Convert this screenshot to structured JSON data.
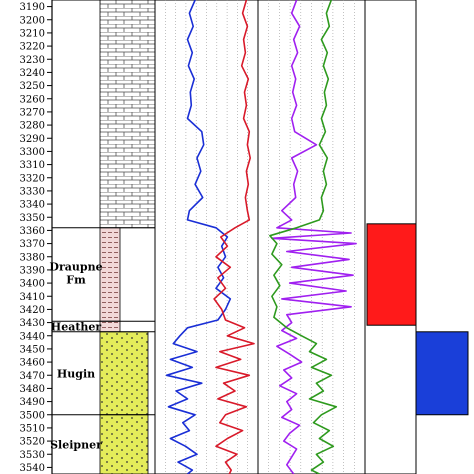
{
  "chart_data": {
    "type": "line",
    "title": "",
    "depth_axis": {
      "range": [
        3185,
        3545
      ],
      "ticks": [
        3190,
        3200,
        3210,
        3220,
        3230,
        3240,
        3250,
        3260,
        3270,
        3280,
        3290,
        3300,
        3310,
        3320,
        3330,
        3340,
        3350,
        3360,
        3370,
        3380,
        3390,
        3400,
        3410,
        3420,
        3430,
        3440,
        3450,
        3460,
        3470,
        3480,
        3490,
        3500,
        3510,
        3520,
        3530,
        3540
      ]
    },
    "formations": [
      {
        "label": "",
        "top": 3185,
        "base": 3358,
        "lithology": "limestone"
      },
      {
        "label": "Draupne Fm",
        "top": 3358,
        "base": 3429,
        "lithology": "shale"
      },
      {
        "label": "Heather",
        "top": 3429,
        "base": 3437,
        "lithology": "shale"
      },
      {
        "label": "Hugin",
        "top": 3437,
        "base": 3500,
        "lithology": "sandstone"
      },
      {
        "label": "Sleipner",
        "top": 3500,
        "base": 3545,
        "lithology": "sandstone"
      }
    ],
    "tracks": [
      {
        "series": [
          {
            "color": "#1a2fd6",
            "x_range": [
              0,
              100
            ],
            "depths": [
              3185,
              3195,
              3205,
              3215,
              3225,
              3235,
              3245,
              3255,
              3265,
              3275,
              3285,
              3295,
              3305,
              3315,
              3325,
              3335,
              3345,
              3352,
              3358,
              3365,
              3372,
              3380,
              3388,
              3396,
              3404,
              3412,
              3420,
              3428,
              3434,
              3440,
              3446,
              3452,
              3458,
              3464,
              3470,
              3476,
              3482,
              3488,
              3494,
              3500,
              3506,
              3512,
              3518,
              3524,
              3530,
              3536,
              3542,
              3545
            ],
            "values": [
              38,
              32,
              36,
              30,
              35,
              31,
              37,
              33,
              34,
              30,
              45,
              47,
              40,
              44,
              38,
              46,
              32,
              30,
              60,
              72,
              66,
              70,
              62,
              68,
              60,
              75,
              70,
              62,
              30,
              22,
              15,
              40,
              12,
              35,
              8,
              45,
              18,
              30,
              10,
              38,
              25,
              32,
              12,
              28,
              40,
              20,
              35,
              30
            ]
          },
          {
            "color": "#d91a2a",
            "x_range": [
              0,
              100
            ],
            "depths": [
              3185,
              3195,
              3205,
              3215,
              3225,
              3235,
              3245,
              3255,
              3265,
              3275,
              3285,
              3295,
              3305,
              3315,
              3325,
              3335,
              3345,
              3352,
              3358,
              3365,
              3372,
              3380,
              3388,
              3396,
              3404,
              3412,
              3420,
              3428,
              3434,
              3440,
              3446,
              3452,
              3458,
              3464,
              3470,
              3476,
              3482,
              3488,
              3494,
              3500,
              3506,
              3512,
              3518,
              3524,
              3530,
              3536,
              3542,
              3545
            ],
            "values": [
              92,
              88,
              93,
              89,
              91,
              87,
              94,
              90,
              92,
              89,
              95,
              93,
              96,
              92,
              94,
              91,
              93,
              95,
              80,
              65,
              72,
              60,
              75,
              62,
              70,
              58,
              66,
              70,
              90,
              72,
              100,
              64,
              86,
              60,
              95,
              68,
              80,
              62,
              92,
              70,
              64,
              88,
              72,
              60,
              82,
              70,
              76,
              74
            ]
          }
        ]
      },
      {
        "series": [
          {
            "color": "#a020f0",
            "x_range": [
              0,
              100
            ],
            "depths": [
              3185,
              3195,
              3205,
              3215,
              3225,
              3235,
              3245,
              3255,
              3265,
              3275,
              3285,
              3295,
              3305,
              3315,
              3325,
              3335,
              3345,
              3352,
              3358,
              3362,
              3366,
              3370,
              3376,
              3382,
              3388,
              3394,
              3400,
              3406,
              3412,
              3418,
              3424,
              3430,
              3436,
              3442,
              3448,
              3454,
              3460,
              3466,
              3472,
              3478,
              3484,
              3490,
              3496,
              3502,
              3508,
              3514,
              3520,
              3526,
              3532,
              3538,
              3545
            ],
            "values": [
              35,
              30,
              38,
              32,
              36,
              30,
              34,
              31,
              35,
              30,
              33,
              55,
              30,
              36,
              32,
              34,
              20,
              30,
              15,
              90,
              10,
              95,
              25,
              88,
              30,
              92,
              28,
              85,
              20,
              90,
              25,
              30,
              20,
              35,
              15,
              28,
              40,
              22,
              30,
              18,
              35,
              25,
              30,
              20,
              38,
              28,
              22,
              35,
              30,
              25,
              32
            ]
          },
          {
            "color": "#2e9a1e",
            "x_range": [
              0,
              100
            ],
            "depths": [
              3185,
              3195,
              3205,
              3215,
              3225,
              3235,
              3245,
              3255,
              3265,
              3275,
              3285,
              3295,
              3305,
              3315,
              3325,
              3335,
              3345,
              3352,
              3358,
              3364,
              3370,
              3378,
              3386,
              3394,
              3402,
              3410,
              3418,
              3426,
              3434,
              3440,
              3446,
              3452,
              3458,
              3464,
              3470,
              3476,
              3482,
              3488,
              3494,
              3500,
              3506,
              3512,
              3518,
              3524,
              3530,
              3536,
              3542,
              3545
            ],
            "values": [
              70,
              65,
              68,
              60,
              66,
              62,
              67,
              63,
              65,
              60,
              64,
              58,
              66,
              62,
              65,
              60,
              62,
              58,
              35,
              8,
              15,
              10,
              20,
              12,
              18,
              10,
              15,
              12,
              25,
              40,
              55,
              48,
              65,
              50,
              70,
              55,
              62,
              48,
              75,
              60,
              52,
              68,
              58,
              72,
              55,
              62,
              50,
              58
            ]
          }
        ]
      }
    ],
    "intervals": [
      {
        "top": 3355,
        "base": 3432,
        "color": "#ff1a1a"
      },
      {
        "top": 3437,
        "base": 3500,
        "color": "#1a3fd9"
      }
    ]
  }
}
